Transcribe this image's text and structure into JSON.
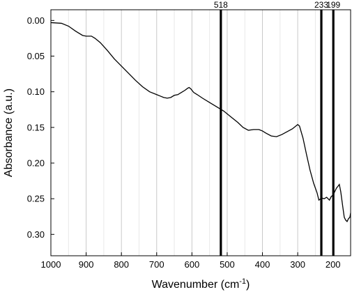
{
  "chart_data": {
    "type": "line",
    "title": "",
    "xlabel_main": "Wavenumber (cm",
    "xlabel_sup": "-1",
    "xlabel_end": ")",
    "ylabel": "Absorbance (a.u.)",
    "xlim": [
      1000,
      150
    ],
    "ylim": [
      0.33,
      -0.015
    ],
    "x_reversed": true,
    "y_reversed": true,
    "grid": "vertical",
    "x_ticks": [
      1000,
      900,
      800,
      700,
      600,
      500,
      400,
      300,
      200
    ],
    "x_tick_labels": [
      "1000",
      "900",
      "800",
      "700",
      "600",
      "500",
      "400",
      "300",
      "200"
    ],
    "y_ticks": [
      0.0,
      0.05,
      0.1,
      0.15,
      0.2,
      0.25,
      0.3
    ],
    "y_tick_labels": [
      "0.00",
      "0.05",
      "0.10",
      "0.15",
      "0.20",
      "0.25",
      "0.30"
    ],
    "markers": [
      {
        "label": "518",
        "x": 518
      },
      {
        "label": "233",
        "x": 233
      },
      {
        "label": "199",
        "x": 199
      }
    ],
    "series": [
      {
        "x": [
          1000,
          970,
          950,
          930,
          910,
          900,
          885,
          875,
          860,
          840,
          820,
          800,
          780,
          760,
          740,
          720,
          700,
          690,
          680,
          670,
          660,
          650,
          640,
          630,
          620,
          612,
          608,
          603,
          595,
          585,
          570,
          550,
          530,
          510,
          490,
          470,
          455,
          440,
          425,
          410,
          400,
          390,
          375,
          360,
          345,
          330,
          315,
          305,
          300,
          295,
          285,
          275,
          265,
          255,
          245,
          240,
          232,
          225,
          218,
          210,
          205,
          200,
          195,
          190,
          185,
          182,
          178,
          172,
          168,
          164,
          160,
          156,
          152,
          150
        ],
        "y": [
          0.003,
          0.004,
          0.008,
          0.015,
          0.021,
          0.022,
          0.022,
          0.025,
          0.031,
          0.042,
          0.054,
          0.064,
          0.074,
          0.084,
          0.093,
          0.1,
          0.104,
          0.106,
          0.108,
          0.109,
          0.108,
          0.105,
          0.104,
          0.101,
          0.098,
          0.095,
          0.094,
          0.096,
          0.101,
          0.104,
          0.109,
          0.115,
          0.121,
          0.127,
          0.135,
          0.143,
          0.15,
          0.154,
          0.153,
          0.153,
          0.155,
          0.158,
          0.162,
          0.163,
          0.16,
          0.156,
          0.152,
          0.148,
          0.146,
          0.148,
          0.165,
          0.188,
          0.21,
          0.228,
          0.242,
          0.252,
          0.249,
          0.25,
          0.248,
          0.252,
          0.247,
          0.245,
          0.24,
          0.235,
          0.232,
          0.23,
          0.24,
          0.262,
          0.276,
          0.28,
          0.282,
          0.278,
          0.276,
          0.27
        ]
      }
    ]
  }
}
